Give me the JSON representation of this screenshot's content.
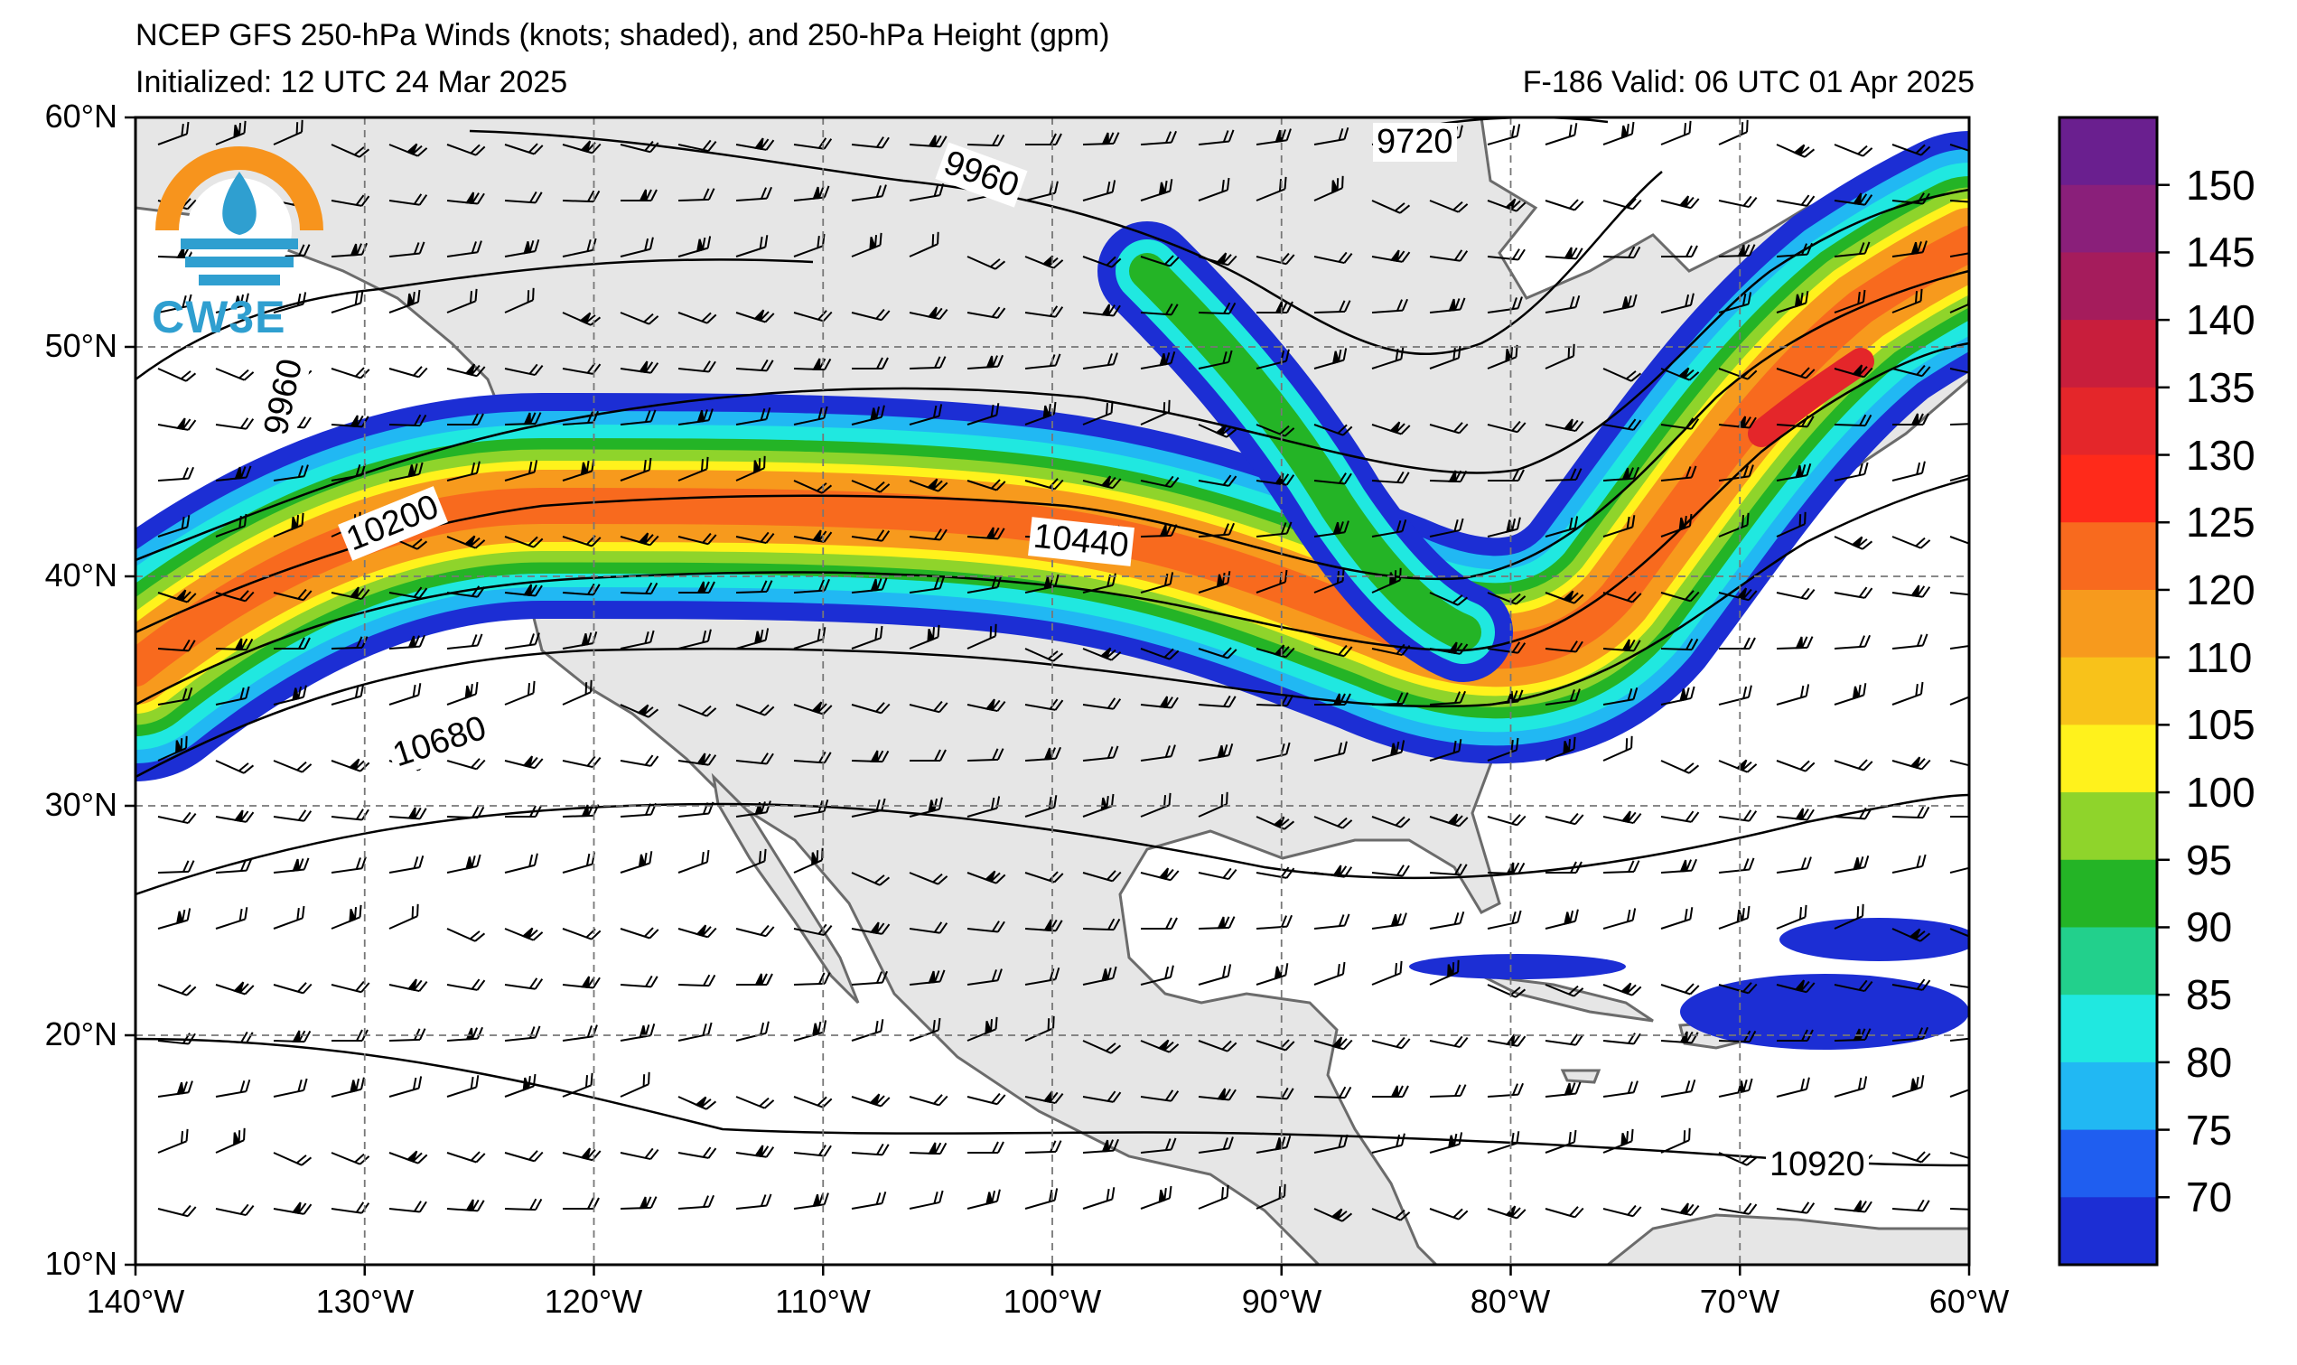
{
  "header": {
    "title": "NCEP GFS 250-hPa Winds (knots; shaded), and 250-hPa Height (gpm)",
    "initialized": "Initialized: 12 UTC 24 Mar 2025",
    "valid": "F-186  Valid: 06 UTC 01 Apr 2025"
  },
  "logo": {
    "text": "CW3E"
  },
  "axes": {
    "lat_labels": [
      "60°N",
      "50°N",
      "40°N",
      "30°N",
      "20°N",
      "10°N"
    ],
    "lon_labels": [
      "140°W",
      "130°W",
      "120°W",
      "110°W",
      "100°W",
      "90°W",
      "80°W",
      "70°W",
      "60°W"
    ]
  },
  "contour_labels": [
    "9960",
    "9720",
    "9960",
    "10200",
    "10440",
    "10680",
    "10920"
  ],
  "colorbar": {
    "labels": [
      "150",
      "145",
      "140",
      "135",
      "130",
      "125",
      "120",
      "110",
      "105",
      "100",
      "95",
      "90",
      "85",
      "80",
      "75",
      "70"
    ],
    "colors": [
      "#6a1f8f",
      "#8a1f7a",
      "#a51c5c",
      "#c81e3c",
      "#e4262a",
      "#ff2a1a",
      "#f86a1e",
      "#f79a1d",
      "#f8c21a",
      "#fff21c",
      "#8fd42b",
      "#24b426",
      "#22d08c",
      "#20e8e0",
      "#21b8f3",
      "#1f5ef0",
      "#1c2ed4"
    ]
  },
  "colors": {
    "land": "#e6e6e6",
    "coast": "#6b6b6b",
    "jet_blue": "#1c2ed4",
    "jet_cyan": "#20e8e0",
    "jet_green": "#24b426",
    "jet_yellow": "#fff21c",
    "jet_orange": "#f79a1d",
    "jet_red": "#e4262a"
  }
}
